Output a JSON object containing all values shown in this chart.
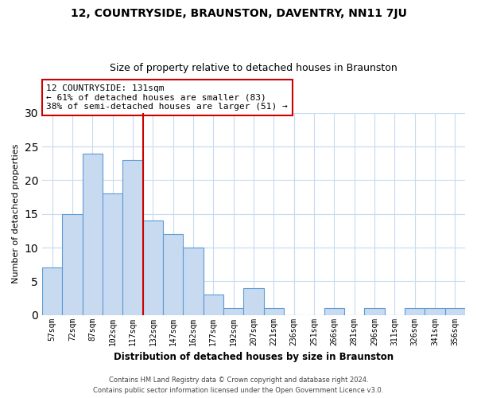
{
  "title": "12, COUNTRYSIDE, BRAUNSTON, DAVENTRY, NN11 7JU",
  "subtitle": "Size of property relative to detached houses in Braunston",
  "xlabel": "Distribution of detached houses by size in Braunston",
  "ylabel": "Number of detached properties",
  "footer_line1": "Contains HM Land Registry data © Crown copyright and database right 2024.",
  "footer_line2": "Contains public sector information licensed under the Open Government Licence v3.0.",
  "bin_labels": [
    "57sqm",
    "72sqm",
    "87sqm",
    "102sqm",
    "117sqm",
    "132sqm",
    "147sqm",
    "162sqm",
    "177sqm",
    "192sqm",
    "207sqm",
    "221sqm",
    "236sqm",
    "251sqm",
    "266sqm",
    "281sqm",
    "296sqm",
    "311sqm",
    "326sqm",
    "341sqm",
    "356sqm"
  ],
  "bar_values": [
    7,
    15,
    24,
    18,
    23,
    14,
    12,
    10,
    3,
    1,
    4,
    1,
    0,
    0,
    1,
    0,
    1,
    0,
    1,
    1,
    1
  ],
  "bar_color": "#c8daf0",
  "bar_edge_color": "#5b9bd5",
  "highlight_line_index": 5,
  "highlight_line_color": "#cc0000",
  "annotation_line0": "12 COUNTRYSIDE: 131sqm",
  "annotation_line1": "← 61% of detached houses are smaller (83)",
  "annotation_line2": "38% of semi-detached houses are larger (51) →",
  "annotation_box_color": "#ffffff",
  "annotation_box_edge": "#cc0000",
  "ylim": [
    0,
    30
  ],
  "yticks": [
    0,
    5,
    10,
    15,
    20,
    25,
    30
  ],
  "background_color": "#ffffff",
  "grid_color": "#c8daf0"
}
